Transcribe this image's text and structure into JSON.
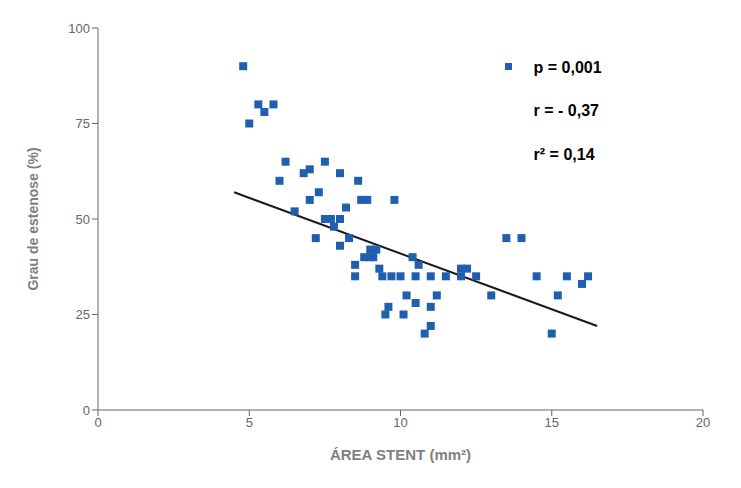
{
  "chart_data": {
    "type": "scatter",
    "xlabel": "ÁREA STENT (mm²)",
    "ylabel": "Grau de estenose (%)",
    "xlim": [
      0,
      20
    ],
    "ylim": [
      0,
      100
    ],
    "xticks": [
      0,
      5,
      10,
      15,
      20
    ],
    "yticks": [
      0,
      25,
      50,
      75,
      100
    ],
    "grid": false,
    "series": [
      {
        "type": "scatter",
        "marker": "square",
        "color": "#1F5FAD",
        "x": [
          4.8,
          5.0,
          5.3,
          5.5,
          5.8,
          6.0,
          6.2,
          6.5,
          6.8,
          7.0,
          7.2,
          7.3,
          7.5,
          7.7,
          7.8,
          8.0,
          8.0,
          8.2,
          8.3,
          8.5,
          8.6,
          8.7,
          8.8,
          8.9,
          9.0,
          9.1,
          9.2,
          9.3,
          9.4,
          9.5,
          9.6,
          9.7,
          9.8,
          10.0,
          10.1,
          10.2,
          10.4,
          10.5,
          10.6,
          10.8,
          11.0,
          11.0,
          11.2,
          11.5,
          12.0,
          12.2,
          12.5,
          13.0,
          14.0,
          14.5,
          15.0,
          15.2,
          15.5,
          16.0,
          16.2,
          7.0,
          7.5,
          8.0,
          8.5,
          9.0,
          10.5,
          11.0,
          12.0,
          13.5
        ],
        "values": [
          90,
          75,
          80,
          78,
          80,
          60,
          65,
          52,
          62,
          55,
          45,
          57,
          65,
          50,
          48,
          43,
          62,
          53,
          45,
          35,
          60,
          55,
          40,
          55,
          42,
          40,
          42,
          37,
          35,
          25,
          27,
          35,
          55,
          35,
          25,
          30,
          40,
          35,
          38,
          20,
          22,
          27,
          30,
          35,
          35,
          37,
          35,
          30,
          45,
          35,
          20,
          30,
          35,
          33,
          35,
          63,
          50,
          50,
          38,
          40,
          28,
          35,
          37,
          45
        ]
      },
      {
        "type": "line",
        "color": "#1a1a1a",
        "x": [
          4.5,
          16.5
        ],
        "values": [
          57,
          22
        ]
      }
    ],
    "annotations": [
      "p = 0,001",
      "r = - 0,37",
      "r² = 0,14"
    ]
  }
}
